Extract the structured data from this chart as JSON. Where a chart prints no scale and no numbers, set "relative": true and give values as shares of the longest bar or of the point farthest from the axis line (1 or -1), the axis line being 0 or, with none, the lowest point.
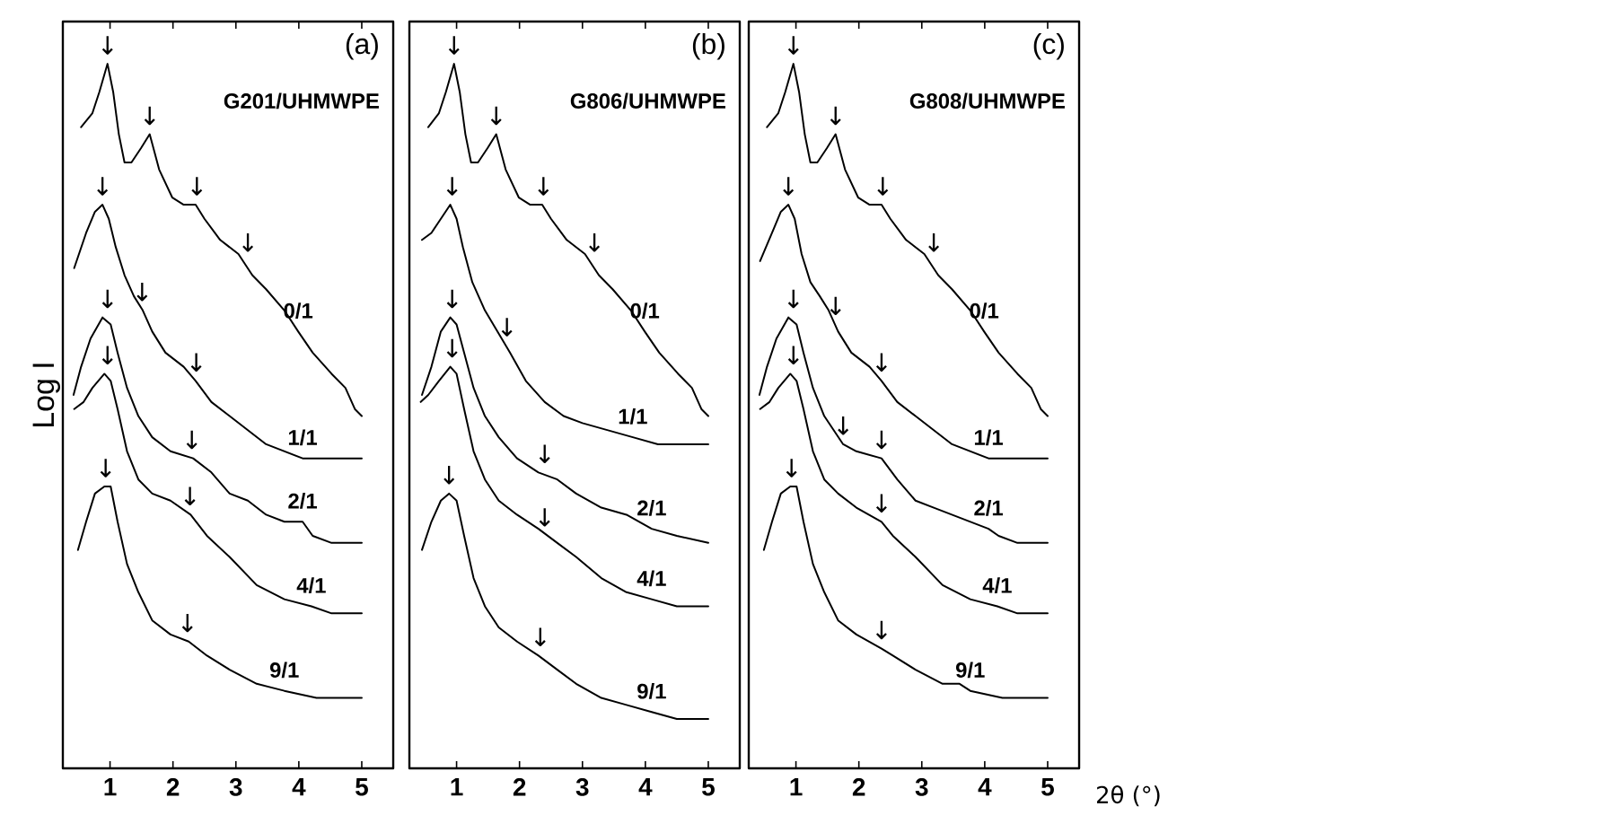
{
  "chart_data": [
    {
      "type": "line",
      "relative": true,
      "title": "(a)",
      "subtitle": "G201/UHMWPE",
      "ylabel": "Log I",
      "xlim": [
        0.25,
        5.5
      ],
      "xticks": [
        1,
        2,
        3,
        4,
        5
      ],
      "tick_labels": "x",
      "line_style": "solid",
      "series": [
        {
          "name": "0/1",
          "color": "#000000",
          "x": [
            0.54,
            0.72,
            0.83,
            0.96,
            1.05,
            1.14,
            1.23,
            1.34,
            1.49,
            1.63,
            1.78,
            1.99,
            2.17,
            2.36,
            2.5,
            2.75,
            3.04,
            3.26,
            3.48,
            3.77,
            3.99,
            4.22,
            4.52,
            4.74,
            4.89,
            5.0
          ],
          "values": [
            0.91,
            0.93,
            0.96,
            1.0,
            0.96,
            0.9,
            0.86,
            0.86,
            0.88,
            0.9,
            0.85,
            0.81,
            0.8,
            0.8,
            0.78,
            0.75,
            0.73,
            0.7,
            0.68,
            0.65,
            0.62,
            0.59,
            0.56,
            0.54,
            0.51,
            0.5
          ]
        },
        {
          "name": "1/1",
          "color": "#000000",
          "x": [
            0.43,
            0.62,
            0.76,
            0.88,
            0.98,
            1.09,
            1.23,
            1.38,
            1.52,
            1.67,
            1.88,
            2.17,
            2.36,
            2.61,
            2.9,
            3.19,
            3.48,
            3.77,
            4.06,
            4.37,
            4.67,
            5.0
          ],
          "values": [
            0.71,
            0.76,
            0.79,
            0.8,
            0.78,
            0.74,
            0.7,
            0.67,
            0.65,
            0.62,
            0.59,
            0.57,
            0.55,
            0.52,
            0.5,
            0.48,
            0.46,
            0.45,
            0.44,
            0.44,
            0.44,
            0.44
          ]
        },
        {
          "name": "2/1",
          "color": "#000000",
          "x": [
            0.42,
            0.54,
            0.69,
            0.88,
            1.01,
            1.12,
            1.27,
            1.45,
            1.67,
            1.96,
            2.32,
            2.61,
            2.9,
            3.19,
            3.48,
            3.77,
            4.06,
            4.22,
            4.52,
            5.0
          ],
          "values": [
            0.53,
            0.57,
            0.61,
            0.64,
            0.63,
            0.59,
            0.54,
            0.5,
            0.47,
            0.45,
            0.44,
            0.42,
            0.39,
            0.38,
            0.36,
            0.35,
            0.35,
            0.33,
            0.32,
            0.32
          ]
        },
        {
          "name": "4/1",
          "color": "#000000",
          "x": [
            0.43,
            0.58,
            0.72,
            0.91,
            1.01,
            1.12,
            1.27,
            1.45,
            1.67,
            1.96,
            2.28,
            2.54,
            2.9,
            3.33,
            3.77,
            4.2,
            4.52,
            5.0
          ],
          "values": [
            0.51,
            0.52,
            0.54,
            0.56,
            0.55,
            0.51,
            0.45,
            0.41,
            0.39,
            0.38,
            0.36,
            0.33,
            0.3,
            0.26,
            0.24,
            0.23,
            0.22,
            0.22
          ]
        },
        {
          "name": "9/1",
          "color": "#000000",
          "x": [
            0.49,
            0.62,
            0.76,
            0.91,
            1.01,
            1.12,
            1.27,
            1.45,
            1.67,
            1.96,
            2.25,
            2.54,
            2.9,
            3.33,
            3.77,
            4.28,
            4.52,
            5.0
          ],
          "values": [
            0.31,
            0.35,
            0.39,
            0.4,
            0.4,
            0.35,
            0.29,
            0.25,
            0.21,
            0.19,
            0.18,
            0.16,
            0.14,
            0.12,
            0.11,
            0.1,
            0.1,
            0.1
          ]
        }
      ],
      "annotations": [
        {
          "text": "↓",
          "x": 0.96,
          "y": 1.0
        },
        {
          "text": "↓",
          "x": 1.63,
          "y": 0.9
        },
        {
          "text": "↓",
          "x": 2.38,
          "y": 0.8
        },
        {
          "text": "↓",
          "x": 3.19,
          "y": 0.72
        },
        {
          "text": "↓",
          "x": 0.88,
          "y": 0.8
        },
        {
          "text": "↓",
          "x": 1.51,
          "y": 0.65
        },
        {
          "text": "↓",
          "x": 2.37,
          "y": 0.55
        },
        {
          "text": "↓",
          "x": 0.96,
          "y": 0.64
        },
        {
          "text": "↓",
          "x": 2.3,
          "y": 0.44
        },
        {
          "text": "↓",
          "x": 0.96,
          "y": 0.56
        },
        {
          "text": "↓",
          "x": 2.27,
          "y": 0.36
        },
        {
          "text": "↓",
          "x": 0.93,
          "y": 0.4
        },
        {
          "text": "↓",
          "x": 2.23,
          "y": 0.18
        }
      ]
    },
    {
      "type": "line",
      "relative": true,
      "title": "(b)",
      "subtitle": "G806/UHMWPE",
      "xlim": [
        0.25,
        5.5
      ],
      "xticks": [
        1,
        2,
        3,
        4,
        5
      ],
      "tick_labels": "x",
      "line_style": "solid",
      "series": [
        {
          "name": "0/1",
          "color": "#000000",
          "x": [
            0.55,
            0.72,
            0.83,
            0.96,
            1.05,
            1.14,
            1.23,
            1.34,
            1.49,
            1.63,
            1.78,
            1.99,
            2.17,
            2.36,
            2.5,
            2.75,
            3.04,
            3.26,
            3.48,
            3.77,
            3.99,
            4.22,
            4.52,
            4.74,
            4.89,
            5.0
          ],
          "values": [
            0.91,
            0.93,
            0.96,
            1.0,
            0.96,
            0.9,
            0.86,
            0.86,
            0.88,
            0.9,
            0.85,
            0.81,
            0.8,
            0.8,
            0.78,
            0.75,
            0.73,
            0.7,
            0.68,
            0.65,
            0.62,
            0.59,
            0.56,
            0.54,
            0.51,
            0.5
          ]
        },
        {
          "name": "1/1",
          "color": "#000000",
          "x": [
            0.45,
            0.6,
            0.75,
            0.9,
            1.0,
            1.1,
            1.25,
            1.45,
            1.65,
            1.85,
            2.1,
            2.4,
            2.7,
            3.0,
            3.4,
            3.8,
            4.2,
            4.6,
            5.0
          ],
          "values": [
            0.75,
            0.76,
            0.78,
            0.8,
            0.78,
            0.74,
            0.69,
            0.65,
            0.62,
            0.59,
            0.55,
            0.52,
            0.5,
            0.49,
            0.48,
            0.47,
            0.46,
            0.46,
            0.46
          ]
        },
        {
          "name": "2/1",
          "color": "#000000",
          "x": [
            0.45,
            0.6,
            0.75,
            0.9,
            1.0,
            1.12,
            1.27,
            1.45,
            1.67,
            1.96,
            2.3,
            2.6,
            2.9,
            3.3,
            3.7,
            4.1,
            4.5,
            5.0
          ],
          "values": [
            0.53,
            0.57,
            0.62,
            0.64,
            0.63,
            0.59,
            0.54,
            0.5,
            0.47,
            0.44,
            0.42,
            0.41,
            0.39,
            0.37,
            0.36,
            0.34,
            0.33,
            0.32
          ]
        },
        {
          "name": "4/1",
          "color": "#000000",
          "x": [
            0.43,
            0.55,
            0.72,
            0.9,
            1.0,
            1.12,
            1.27,
            1.45,
            1.67,
            1.96,
            2.3,
            2.6,
            2.9,
            3.3,
            3.7,
            4.1,
            4.5,
            5.0
          ],
          "values": [
            0.52,
            0.53,
            0.55,
            0.57,
            0.56,
            0.51,
            0.45,
            0.41,
            0.38,
            0.36,
            0.34,
            0.32,
            0.3,
            0.27,
            0.25,
            0.24,
            0.23,
            0.23
          ]
        },
        {
          "name": "9/1",
          "color": "#000000",
          "x": [
            0.45,
            0.6,
            0.75,
            0.88,
            1.0,
            1.12,
            1.27,
            1.45,
            1.67,
            1.96,
            2.3,
            2.6,
            2.9,
            3.3,
            3.7,
            4.1,
            4.5,
            5.0
          ],
          "values": [
            0.31,
            0.35,
            0.38,
            0.39,
            0.38,
            0.33,
            0.27,
            0.23,
            0.2,
            0.18,
            0.16,
            0.14,
            0.12,
            0.1,
            0.09,
            0.08,
            0.07,
            0.07
          ]
        }
      ],
      "annotations": [
        {
          "text": "↓",
          "x": 0.96,
          "y": 1.0
        },
        {
          "text": "↓",
          "x": 1.63,
          "y": 0.9
        },
        {
          "text": "↓",
          "x": 2.38,
          "y": 0.8
        },
        {
          "text": "↓",
          "x": 3.19,
          "y": 0.72
        },
        {
          "text": "↓",
          "x": 0.93,
          "y": 0.8
        },
        {
          "text": "↓",
          "x": 1.8,
          "y": 0.6
        },
        {
          "text": "↓",
          "x": 0.93,
          "y": 0.64
        },
        {
          "text": "↓",
          "x": 2.4,
          "y": 0.42
        },
        {
          "text": "↓",
          "x": 0.93,
          "y": 0.57
        },
        {
          "text": "↓",
          "x": 2.4,
          "y": 0.33
        },
        {
          "text": "↓",
          "x": 0.88,
          "y": 0.39
        },
        {
          "text": "↓",
          "x": 2.33,
          "y": 0.16
        }
      ]
    },
    {
      "type": "line",
      "relative": true,
      "title": "(c)",
      "subtitle": "G808/UHMWPE",
      "xlabel": "2θ (°)",
      "xlim": [
        0.25,
        5.5
      ],
      "xticks": [
        1,
        2,
        3,
        4,
        5
      ],
      "tick_labels": "x",
      "line_style": "solid",
      "series": [
        {
          "name": "0/1",
          "color": "#000000",
          "x": [
            0.54,
            0.72,
            0.83,
            0.96,
            1.05,
            1.14,
            1.23,
            1.34,
            1.49,
            1.63,
            1.78,
            1.99,
            2.17,
            2.36,
            2.5,
            2.75,
            3.04,
            3.26,
            3.48,
            3.77,
            3.99,
            4.22,
            4.52,
            4.74,
            4.89,
            5.0
          ],
          "values": [
            0.91,
            0.93,
            0.96,
            1.0,
            0.96,
            0.9,
            0.86,
            0.86,
            0.88,
            0.9,
            0.85,
            0.81,
            0.8,
            0.8,
            0.78,
            0.75,
            0.73,
            0.7,
            0.68,
            0.65,
            0.62,
            0.59,
            0.56,
            0.54,
            0.51,
            0.5
          ]
        },
        {
          "name": "1/1",
          "color": "#000000",
          "x": [
            0.43,
            0.62,
            0.76,
            0.88,
            0.98,
            1.09,
            1.23,
            1.38,
            1.52,
            1.67,
            1.88,
            2.17,
            2.36,
            2.61,
            2.9,
            3.19,
            3.48,
            3.77,
            4.06,
            4.37,
            4.67,
            5.0
          ],
          "values": [
            0.72,
            0.76,
            0.79,
            0.8,
            0.78,
            0.73,
            0.69,
            0.67,
            0.65,
            0.62,
            0.59,
            0.57,
            0.55,
            0.52,
            0.5,
            0.48,
            0.46,
            0.45,
            0.44,
            0.44,
            0.44,
            0.44
          ]
        },
        {
          "name": "2/1",
          "color": "#000000",
          "x": [
            0.42,
            0.54,
            0.69,
            0.88,
            1.01,
            1.12,
            1.27,
            1.45,
            1.75,
            1.96,
            2.36,
            2.61,
            2.9,
            3.19,
            3.48,
            3.77,
            4.06,
            4.22,
            4.52,
            5.0
          ],
          "values": [
            0.53,
            0.57,
            0.61,
            0.64,
            0.63,
            0.59,
            0.54,
            0.5,
            0.46,
            0.45,
            0.44,
            0.41,
            0.38,
            0.37,
            0.36,
            0.35,
            0.34,
            0.33,
            0.32,
            0.32
          ]
        },
        {
          "name": "4/1",
          "color": "#000000",
          "x": [
            0.43,
            0.58,
            0.72,
            0.91,
            1.01,
            1.12,
            1.27,
            1.45,
            1.67,
            1.96,
            2.36,
            2.54,
            2.9,
            3.33,
            3.77,
            4.2,
            4.52,
            5.0
          ],
          "values": [
            0.51,
            0.52,
            0.54,
            0.56,
            0.55,
            0.51,
            0.45,
            0.41,
            0.39,
            0.37,
            0.35,
            0.33,
            0.3,
            0.26,
            0.24,
            0.23,
            0.22,
            0.22
          ]
        },
        {
          "name": "9/1",
          "color": "#000000",
          "x": [
            0.49,
            0.62,
            0.76,
            0.91,
            1.01,
            1.12,
            1.27,
            1.45,
            1.67,
            1.96,
            2.36,
            2.54,
            2.9,
            3.33,
            3.6,
            3.77,
            4.28,
            4.52,
            5.0
          ],
          "values": [
            0.31,
            0.35,
            0.39,
            0.4,
            0.4,
            0.35,
            0.29,
            0.25,
            0.21,
            0.19,
            0.17,
            0.16,
            0.14,
            0.12,
            0.12,
            0.11,
            0.1,
            0.1,
            0.1
          ]
        }
      ],
      "annotations": [
        {
          "text": "↓",
          "x": 0.96,
          "y": 1.0
        },
        {
          "text": "↓",
          "x": 1.63,
          "y": 0.9
        },
        {
          "text": "↓",
          "x": 2.38,
          "y": 0.8
        },
        {
          "text": "↓",
          "x": 3.19,
          "y": 0.72
        },
        {
          "text": "↓",
          "x": 0.88,
          "y": 0.8
        },
        {
          "text": "↓",
          "x": 1.63,
          "y": 0.63
        },
        {
          "text": "↓",
          "x": 2.36,
          "y": 0.55
        },
        {
          "text": "↓",
          "x": 0.96,
          "y": 0.64
        },
        {
          "text": "↓",
          "x": 1.75,
          "y": 0.46
        },
        {
          "text": "↓",
          "x": 2.36,
          "y": 0.44
        },
        {
          "text": "↓",
          "x": 0.96,
          "y": 0.56
        },
        {
          "text": "↓",
          "x": 2.36,
          "y": 0.35
        },
        {
          "text": "↓",
          "x": 0.93,
          "y": 0.4
        },
        {
          "text": "↓",
          "x": 2.36,
          "y": 0.17
        }
      ]
    }
  ]
}
